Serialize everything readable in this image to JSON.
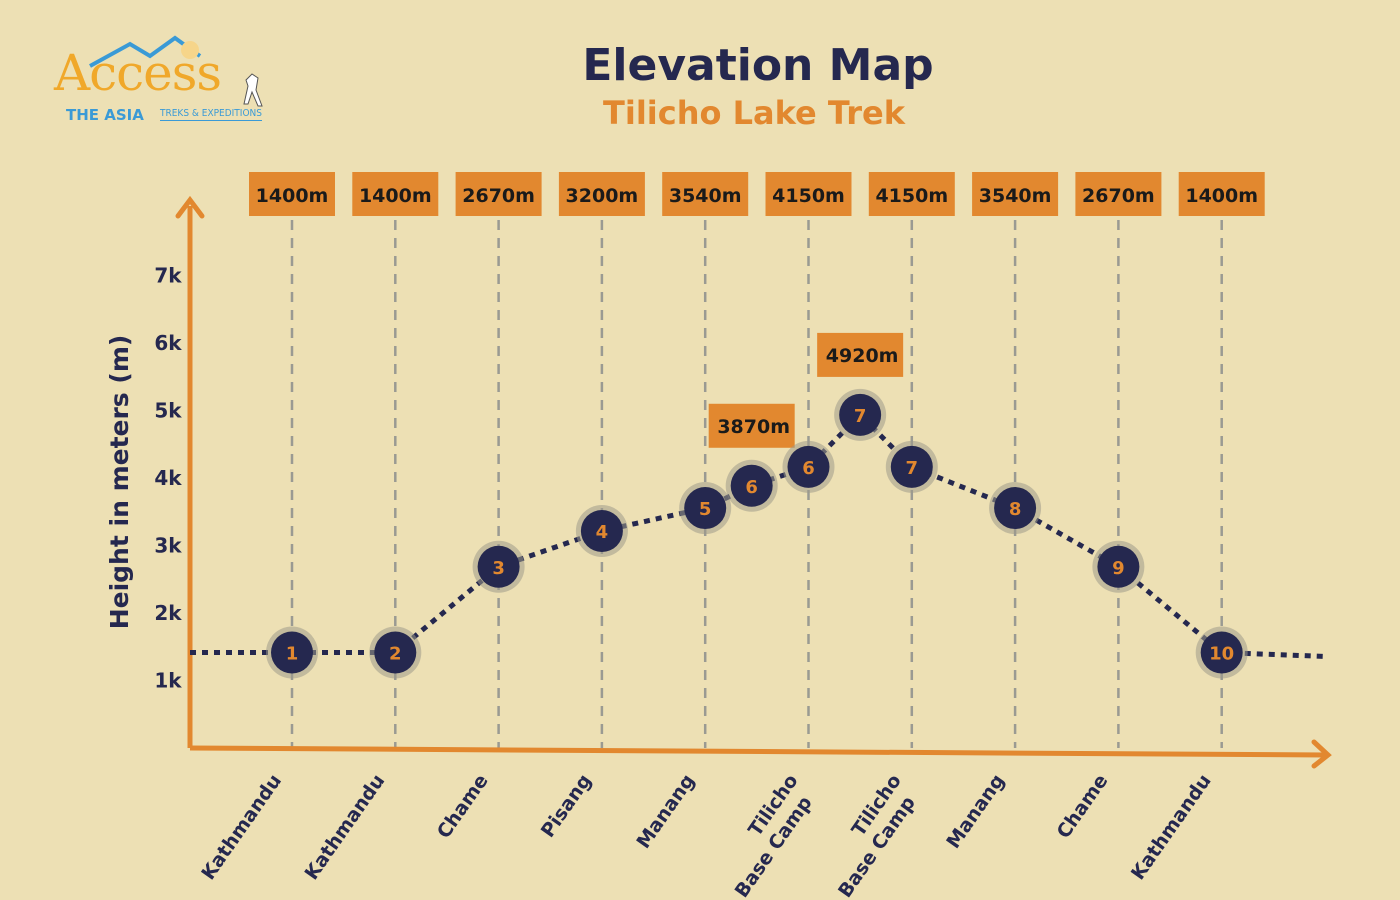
{
  "logo": {
    "word": "Access",
    "line1": "THE ASIA",
    "line2": "TREKS & EXPEDITIONS"
  },
  "header": {
    "title": "Elevation Map",
    "subtitle": "Tilicho Lake Trek"
  },
  "colors": {
    "background": "#ede0b4",
    "navy": "#25284f",
    "orange": "#e2882f",
    "dash": "#9a9a92"
  },
  "chart_data": {
    "type": "line",
    "title": "Elevation Map",
    "subtitle": "Tilicho Lake Trek",
    "ylabel": "Height in meters (m)",
    "xlabel": "",
    "ylim": [
      0,
      7500
    ],
    "yticks": [
      "1k",
      "2k",
      "3k",
      "4k",
      "5k",
      "6k",
      "7k"
    ],
    "ytick_values": [
      1000,
      2000,
      3000,
      4000,
      5000,
      6000,
      7000
    ],
    "categories": [
      "Kathmandu",
      "Kathmandu",
      "Chame",
      "Pisang",
      "Manang",
      "Tilicho Base Camp",
      "Tilicho Base Camp",
      "Manang",
      "Chame",
      "Kathmandu"
    ],
    "category_elevation_labels": [
      "1400m",
      "1400m",
      "2670m",
      "3200m",
      "3540m",
      "4150m",
      "4150m",
      "3540m",
      "2670m",
      "1400m"
    ],
    "points": [
      {
        "day": "1",
        "x": 1,
        "y": 1400
      },
      {
        "day": "2",
        "x": 2,
        "y": 1400
      },
      {
        "day": "3",
        "x": 3,
        "y": 2670
      },
      {
        "day": "4",
        "x": 4,
        "y": 3200
      },
      {
        "day": "5",
        "x": 5,
        "y": 3540
      },
      {
        "day": "6",
        "x": 5.45,
        "y": 3870
      },
      {
        "day": "6",
        "x": 6,
        "y": 4150
      },
      {
        "day": "7",
        "x": 6.5,
        "y": 4920
      },
      {
        "day": "7",
        "x": 7,
        "y": 4150
      },
      {
        "day": "8",
        "x": 8,
        "y": 3540
      },
      {
        "day": "9",
        "x": 9,
        "y": 2670
      },
      {
        "day": "10",
        "x": 10,
        "y": 1400
      }
    ],
    "annotations": [
      {
        "text": "3870m",
        "x": 5.45,
        "y": 3870
      },
      {
        "text": "4920m",
        "x": 6.5,
        "y": 4920
      }
    ],
    "grid": true,
    "legend": "none"
  }
}
